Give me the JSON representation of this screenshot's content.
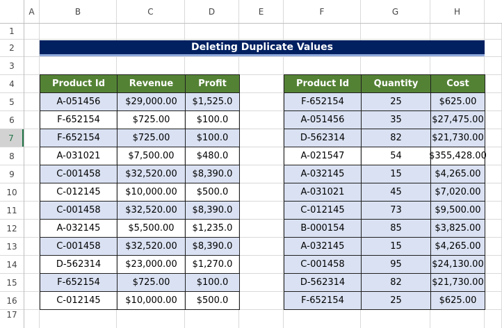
{
  "sheet": {
    "columns": [
      "A",
      "B",
      "C",
      "D",
      "E",
      "F",
      "G",
      "H"
    ],
    "rows": [
      "1",
      "2",
      "3",
      "4",
      "5",
      "6",
      "7",
      "8",
      "9",
      "10",
      "11",
      "12",
      "13",
      "14",
      "15",
      "16",
      "17"
    ],
    "title": "Deleting Duplicate Values",
    "left_table": {
      "headers": [
        "Product Id",
        "Revenue",
        "Profit"
      ],
      "rows": [
        [
          "A-051456",
          "$29,000.00",
          "$1,525.0"
        ],
        [
          "F-652154",
          "$725.00",
          "$100.0"
        ],
        [
          "F-652154",
          "$725.00",
          "$100.0"
        ],
        [
          "A-031021",
          "$7,500.00",
          "$480.0"
        ],
        [
          "C-001458",
          "$32,520.00",
          "$8,390.0"
        ],
        [
          "C-012145",
          "$10,000.00",
          "$500.0"
        ],
        [
          "C-001458",
          "$32,520.00",
          "$8,390.0"
        ],
        [
          "A-032145",
          "$5,500.00",
          "$1,235.0"
        ],
        [
          "C-001458",
          "$32,520.00",
          "$8,390.0"
        ],
        [
          "D-562314",
          "$23,000.00",
          "$1,270.0"
        ],
        [
          "F-652154",
          "$725.00",
          "$100.0"
        ],
        [
          "C-012145",
          "$10,000.00",
          "$500.0"
        ]
      ]
    },
    "right_table": {
      "headers": [
        "Product Id",
        "Quantity",
        "Cost"
      ],
      "rows": [
        [
          "F-652154",
          "25",
          "$625.00"
        ],
        [
          "A-051456",
          "35",
          "$27,475.00"
        ],
        [
          "D-562314",
          "82",
          "$21,730.00"
        ],
        [
          "A-021547",
          "54",
          "$355,428.00"
        ],
        [
          "A-032145",
          "15",
          "$4,265.00"
        ],
        [
          "A-031021",
          "45",
          "$7,020.00"
        ],
        [
          "C-012145",
          "73",
          "$9,500.00"
        ],
        [
          "B-000154",
          "85",
          "$3,825.00"
        ],
        [
          "A-032145",
          "15",
          "$4,265.00"
        ],
        [
          "C-001458",
          "95",
          "$24,130.00"
        ],
        [
          "D-562314",
          "82",
          "$21,730.00"
        ],
        [
          "F-652154",
          "25",
          "$625.00"
        ]
      ]
    }
  }
}
